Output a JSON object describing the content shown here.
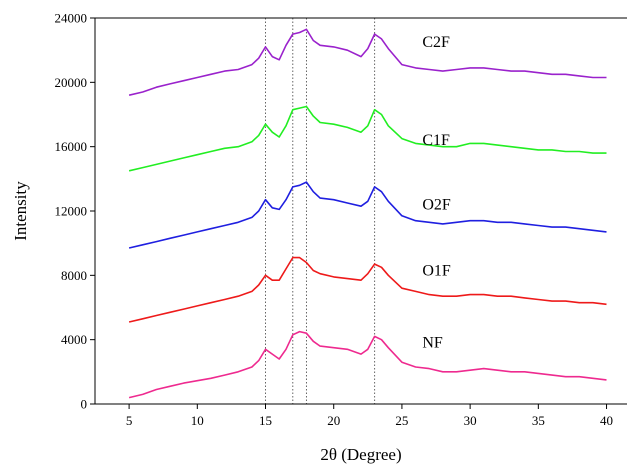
{
  "chart_data": {
    "type": "line",
    "title": "",
    "xlabel": "2θ (Degree)",
    "ylabel": "Intensity",
    "xlim": [
      2.5,
      41.5
    ],
    "ylim": [
      0,
      24000
    ],
    "xticks": [
      5,
      10,
      15,
      20,
      25,
      30,
      35,
      40
    ],
    "yticks": [
      0,
      4000,
      8000,
      12000,
      16000,
      20000,
      24000
    ],
    "xtick_labels": [
      "5",
      "10",
      "15",
      "20",
      "25",
      "30",
      "35",
      "40"
    ],
    "ytick_labels": [
      "0",
      "4000",
      "8000",
      "12000",
      "16000",
      "20000",
      "24000"
    ],
    "grid": false,
    "legend": "inline labels at right of each curve",
    "reference_lines_x": [
      15.0,
      17.0,
      18.0,
      23.0
    ],
    "x": [
      5,
      6,
      7,
      8,
      9,
      10,
      11,
      12,
      13,
      14,
      14.5,
      15,
      15.5,
      16,
      16.5,
      17,
      17.5,
      18,
      18.5,
      19,
      20,
      21,
      22,
      22.5,
      23,
      23.5,
      24,
      25,
      26,
      27,
      28,
      29,
      30,
      31,
      32,
      33,
      34,
      35,
      36,
      37,
      38,
      39,
      40
    ],
    "series": [
      {
        "name": "NF",
        "color": "#ee2a8f",
        "label_x": 26.5,
        "label_y": 3500,
        "values": [
          400,
          600,
          900,
          1100,
          1300,
          1450,
          1600,
          1800,
          2000,
          2300,
          2700,
          3400,
          3100,
          2800,
          3400,
          4300,
          4500,
          4400,
          3900,
          3600,
          3500,
          3400,
          3100,
          3400,
          4200,
          4000,
          3500,
          2600,
          2300,
          2200,
          2000,
          2000,
          2100,
          2200,
          2100,
          2000,
          2000,
          1900,
          1800,
          1700,
          1700,
          1600,
          1500
        ]
      },
      {
        "name": "O1F",
        "color": "#ee1a1a",
        "label_x": 26.5,
        "label_y": 8000,
        "values": [
          5100,
          5300,
          5500,
          5700,
          5900,
          6100,
          6300,
          6500,
          6700,
          7000,
          7400,
          8000,
          7700,
          7700,
          8400,
          9100,
          9100,
          8800,
          8300,
          8100,
          7900,
          7800,
          7700,
          8100,
          8700,
          8500,
          8000,
          7200,
          7000,
          6800,
          6700,
          6700,
          6800,
          6800,
          6700,
          6700,
          6600,
          6500,
          6400,
          6400,
          6300,
          6300,
          6200
        ]
      },
      {
        "name": "O2F",
        "color": "#1f1fe0",
        "label_x": 26.5,
        "label_y": 12100,
        "values": [
          9700,
          9900,
          10100,
          10300,
          10500,
          10700,
          10900,
          11100,
          11300,
          11600,
          12000,
          12700,
          12200,
          12100,
          12700,
          13500,
          13600,
          13800,
          13200,
          12800,
          12700,
          12500,
          12300,
          12600,
          13500,
          13200,
          12600,
          11700,
          11400,
          11300,
          11200,
          11300,
          11400,
          11400,
          11300,
          11300,
          11200,
          11100,
          11000,
          11000,
          10900,
          10800,
          10700
        ]
      },
      {
        "name": "C1F",
        "color": "#22ee22",
        "label_x": 26.5,
        "label_y": 16100,
        "values": [
          14500,
          14700,
          14900,
          15100,
          15300,
          15500,
          15700,
          15900,
          16000,
          16300,
          16700,
          17400,
          16900,
          16600,
          17300,
          18300,
          18400,
          18500,
          17900,
          17500,
          17400,
          17200,
          16900,
          17300,
          18300,
          18000,
          17300,
          16500,
          16200,
          16100,
          16000,
          16000,
          16200,
          16200,
          16100,
          16000,
          15900,
          15800,
          15800,
          15700,
          15700,
          15600,
          15600
        ]
      },
      {
        "name": "C2F",
        "color": "#9a22cc",
        "label_x": 26.5,
        "label_y": 22200,
        "values": [
          19200,
          19400,
          19700,
          19900,
          20100,
          20300,
          20500,
          20700,
          20800,
          21100,
          21500,
          22200,
          21600,
          21400,
          22300,
          23000,
          23100,
          23300,
          22600,
          22300,
          22200,
          22000,
          21600,
          22100,
          23000,
          22700,
          22100,
          21100,
          20900,
          20800,
          20700,
          20800,
          20900,
          20900,
          20800,
          20700,
          20700,
          20600,
          20500,
          20500,
          20400,
          20300,
          20300
        ]
      }
    ]
  }
}
